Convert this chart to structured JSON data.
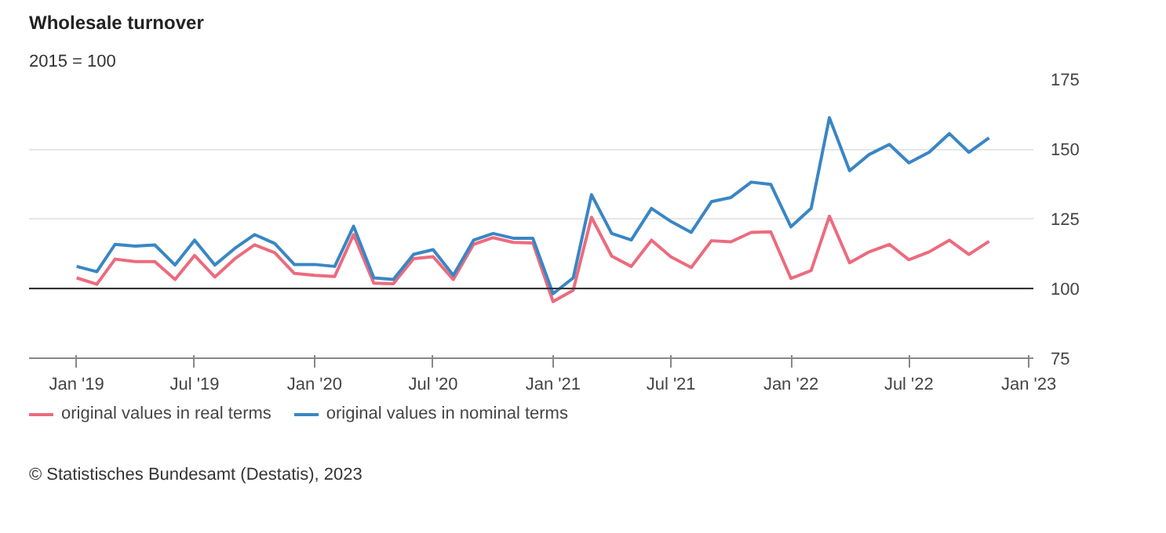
{
  "chart_data": {
    "type": "line",
    "title": "Wholesale turnover",
    "subtitle": "2015 = 100",
    "x": [
      "2019-01",
      "2019-02",
      "2019-03",
      "2019-04",
      "2019-05",
      "2019-06",
      "2019-07",
      "2019-08",
      "2019-09",
      "2019-10",
      "2019-11",
      "2019-12",
      "2020-01",
      "2020-02",
      "2020-03",
      "2020-04",
      "2020-05",
      "2020-06",
      "2020-07",
      "2020-08",
      "2020-09",
      "2020-10",
      "2020-11",
      "2020-12",
      "2021-01",
      "2021-02",
      "2021-03",
      "2021-04",
      "2021-05",
      "2021-06",
      "2021-07",
      "2021-08",
      "2021-09",
      "2021-10",
      "2021-11",
      "2021-12",
      "2022-01",
      "2022-02",
      "2022-03",
      "2022-04",
      "2022-05",
      "2022-06",
      "2022-07",
      "2022-08",
      "2022-09",
      "2022-10",
      "2022-11"
    ],
    "series": [
      {
        "name": "original values in real terms",
        "color": "#ec6b7d",
        "values": [
          103.8,
          101.5,
          110.5,
          109.6,
          109.6,
          103.2,
          111.8,
          104.1,
          110.7,
          115.6,
          112.8,
          105.4,
          104.7,
          104.3,
          119.3,
          101.9,
          101.7,
          110.7,
          111.4,
          103.2,
          115.8,
          118.2,
          116.5,
          116.3,
          95.3,
          99.4,
          125.5,
          111.6,
          107.9,
          117.3,
          111.3,
          107.5,
          117.1,
          116.7,
          120.1,
          120.3,
          103.6,
          106.4,
          125.9,
          109.2,
          113.1,
          115.8,
          110.3,
          113.1,
          117.3,
          112.2,
          116.9
        ]
      },
      {
        "name": "original values in nominal terms",
        "color": "#3a86c4",
        "values": [
          107.9,
          106.0,
          115.8,
          115.2,
          115.6,
          108.4,
          117.3,
          108.4,
          114.4,
          119.3,
          116.1,
          108.6,
          108.6,
          107.9,
          122.3,
          103.8,
          103.2,
          112.2,
          113.9,
          104.7,
          117.3,
          119.7,
          118.0,
          118.0,
          98.1,
          103.8,
          133.6,
          119.7,
          117.4,
          128.7,
          124.0,
          120.1,
          131.1,
          132.6,
          138.1,
          137.3,
          122.1,
          128.7,
          161.2,
          142.2,
          148.0,
          151.6,
          145.0,
          148.8,
          155.5,
          148.8,
          154.0
        ]
      }
    ],
    "xlim": [
      "2018-10-20",
      "2023-01-08"
    ],
    "xticks": [
      {
        "value": "2019-01",
        "label": "Jan '19"
      },
      {
        "value": "2019-07",
        "label": "Jul '19"
      },
      {
        "value": "2020-01",
        "label": "Jan '20"
      },
      {
        "value": "2020-07",
        "label": "Jul '20"
      },
      {
        "value": "2021-01",
        "label": "Jan '21"
      },
      {
        "value": "2021-07",
        "label": "Jul '21"
      },
      {
        "value": "2022-01",
        "label": "Jan '22"
      },
      {
        "value": "2022-07",
        "label": "Jul '22"
      },
      {
        "value": "2023-01",
        "label": "Jan '23"
      }
    ],
    "ylim": [
      75,
      175
    ],
    "yticks": [
      75,
      100,
      125,
      150,
      175
    ],
    "grid": "y",
    "legend": "bottom left",
    "marker": "none",
    "line_style": "solid",
    "ref_lines": [
      {
        "axis": "y",
        "value": 100,
        "color": "#333333"
      }
    ],
    "annotations": [
      "© Statistisches Bundesamt (Destatis), 2023"
    ]
  }
}
